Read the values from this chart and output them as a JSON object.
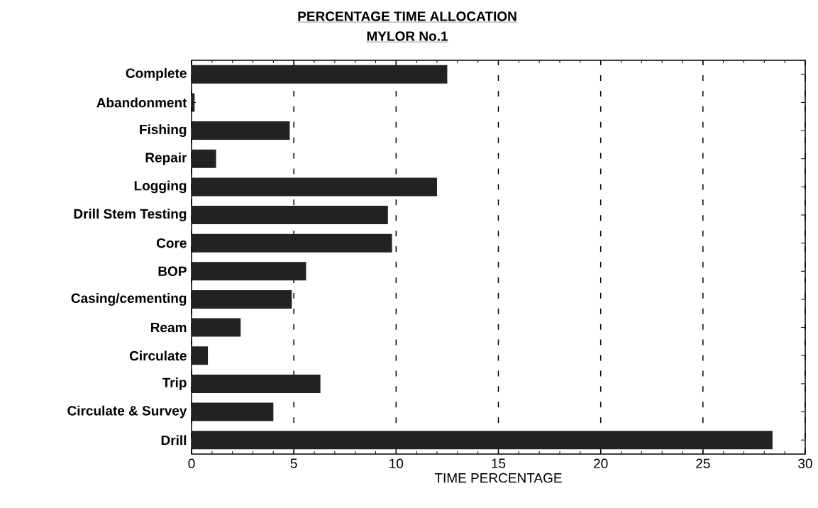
{
  "chart_data": {
    "type": "bar",
    "orientation": "horizontal",
    "title": "PERCENTAGE TIME ALLOCATION",
    "subtitle": "MYLOR No.1",
    "xlabel": "TIME PERCENTAGE",
    "categories": [
      "Complete",
      "Abandonment",
      "Fishing",
      "Repair",
      "Logging",
      "Drill Stem Testing",
      "Core",
      "BOP",
      "Casing/cementing",
      "Ream",
      "Circulate",
      "Trip",
      "Circulate & Survey",
      "Drill"
    ],
    "values": [
      12.5,
      0.15,
      4.8,
      1.2,
      12.0,
      9.6,
      9.8,
      5.6,
      4.9,
      2.4,
      0.8,
      6.3,
      4.0,
      28.4
    ],
    "color": "#222222",
    "xlim": [
      0,
      30
    ],
    "xticks": [
      0,
      5,
      10,
      15,
      20,
      25,
      30
    ],
    "grid": "x"
  }
}
